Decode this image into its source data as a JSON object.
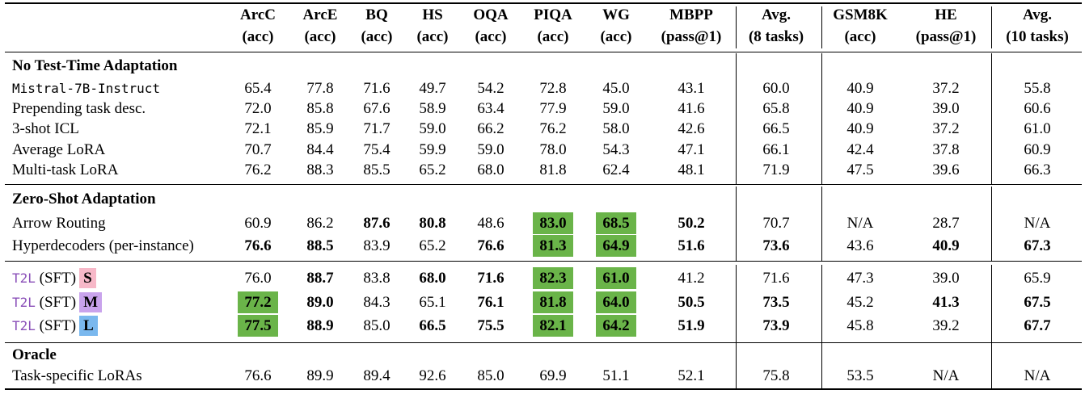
{
  "columns": [
    {
      "name": "ArcC",
      "metric": "(acc)"
    },
    {
      "name": "ArcE",
      "metric": "(acc)"
    },
    {
      "name": "BQ",
      "metric": "(acc)"
    },
    {
      "name": "HS",
      "metric": "(acc)"
    },
    {
      "name": "OQA",
      "metric": "(acc)"
    },
    {
      "name": "PIQA",
      "metric": "(acc)"
    },
    {
      "name": "WG",
      "metric": "(acc)"
    },
    {
      "name": "MBPP",
      "metric": "(pass@1)"
    },
    {
      "name": "Avg.",
      "metric": "(8 tasks)"
    },
    {
      "name": "GSM8K",
      "metric": "(acc)"
    },
    {
      "name": "HE",
      "metric": "(pass@1)"
    },
    {
      "name": "Avg.",
      "metric": "(10 tasks)"
    }
  ],
  "highlight_color": "#6ab449",
  "sections": [
    {
      "title": "No Test-Time Adaptation",
      "rows": [
        {
          "label": "Mistral-7B-Instruct",
          "style": "mono",
          "values": [
            "65.4",
            "77.8",
            "71.6",
            "49.7",
            "54.2",
            "72.8",
            "45.0",
            "43.1",
            "60.0",
            "40.9",
            "37.2",
            "55.8"
          ],
          "bold": [],
          "highlight": []
        },
        {
          "label": "Prepending task desc.",
          "values": [
            "72.0",
            "85.8",
            "67.6",
            "58.9",
            "63.4",
            "77.9",
            "59.0",
            "41.6",
            "65.8",
            "40.9",
            "39.0",
            "60.6"
          ],
          "bold": [],
          "highlight": []
        },
        {
          "label": "3-shot ICL",
          "values": [
            "72.1",
            "85.9",
            "71.7",
            "59.0",
            "66.2",
            "76.2",
            "58.0",
            "42.6",
            "66.5",
            "40.9",
            "37.2",
            "61.0"
          ],
          "bold": [],
          "highlight": []
        },
        {
          "label": "Average LoRA",
          "values": [
            "70.7",
            "84.4",
            "75.4",
            "59.9",
            "59.0",
            "78.0",
            "54.3",
            "47.1",
            "66.1",
            "42.4",
            "37.8",
            "60.9"
          ],
          "bold": [],
          "highlight": []
        },
        {
          "label": "Multi-task LoRA",
          "values": [
            "76.2",
            "88.3",
            "85.5",
            "65.2",
            "68.0",
            "81.8",
            "62.4",
            "48.1",
            "71.9",
            "47.5",
            "39.6",
            "66.3"
          ],
          "bold": [],
          "highlight": []
        }
      ]
    },
    {
      "title": "Zero-Shot Adaptation",
      "rows": [
        {
          "label": "Arrow Routing",
          "values": [
            "60.9",
            "86.2",
            "87.6",
            "80.8",
            "48.6",
            "83.0",
            "68.5",
            "50.2",
            "70.7",
            "N/A",
            "28.7",
            "N/A"
          ],
          "bold": [
            2,
            3,
            5,
            6,
            7
          ],
          "highlight": [
            5,
            6
          ]
        },
        {
          "label": "Hyperdecoders (per-instance)",
          "values": [
            "76.6",
            "88.5",
            "83.9",
            "65.2",
            "76.6",
            "81.3",
            "64.9",
            "51.6",
            "73.6",
            "43.6",
            "40.9",
            "67.3"
          ],
          "bold": [
            0,
            1,
            4,
            5,
            6,
            7,
            8,
            10,
            11
          ],
          "highlight": [
            5,
            6
          ]
        }
      ]
    },
    {
      "title": "",
      "rows": [
        {
          "label": "T2L",
          "suffix": "(SFT)",
          "badge": "S",
          "badge_color": "#f7b8c8",
          "style": "t2l",
          "values": [
            "76.0",
            "88.7",
            "83.8",
            "68.0",
            "71.6",
            "82.3",
            "61.0",
            "41.2",
            "71.6",
            "47.3",
            "39.0",
            "65.9"
          ],
          "bold": [
            1,
            3,
            4,
            5,
            6
          ],
          "highlight": [
            5,
            6
          ]
        },
        {
          "label": "T2L",
          "suffix": "(SFT)",
          "badge": "M",
          "badge_color": "#c9a3ec",
          "style": "t2l",
          "values": [
            "77.2",
            "89.0",
            "84.3",
            "65.1",
            "76.1",
            "81.8",
            "64.0",
            "50.5",
            "73.5",
            "45.2",
            "41.3",
            "67.5"
          ],
          "bold": [
            0,
            1,
            4,
            5,
            6,
            7,
            8,
            10,
            11
          ],
          "highlight": [
            0,
            5,
            6
          ]
        },
        {
          "label": "T2L",
          "suffix": "(SFT)",
          "badge": "L",
          "badge_color": "#7ab8ee",
          "style": "t2l",
          "values": [
            "77.5",
            "88.9",
            "85.0",
            "66.5",
            "75.5",
            "82.1",
            "64.2",
            "51.9",
            "73.9",
            "45.8",
            "39.2",
            "67.7"
          ],
          "bold": [
            0,
            1,
            3,
            4,
            5,
            6,
            7,
            8,
            11
          ],
          "highlight": [
            0,
            5,
            6
          ]
        }
      ]
    },
    {
      "title": "Oracle",
      "rows": [
        {
          "label": "Task-specific LoRAs",
          "values": [
            "76.6",
            "89.9",
            "89.4",
            "92.6",
            "85.0",
            "69.9",
            "51.1",
            "52.1",
            "75.8",
            "53.5",
            "N/A",
            "N/A"
          ],
          "bold": [],
          "highlight": []
        }
      ]
    }
  ]
}
